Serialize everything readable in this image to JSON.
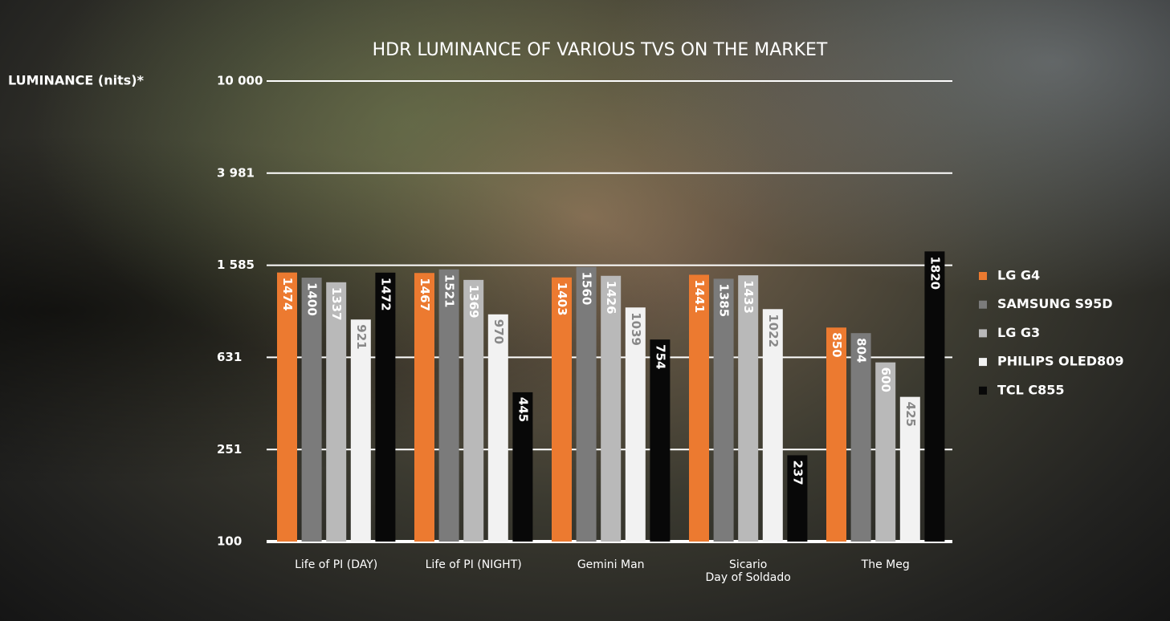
{
  "chart_data": {
    "type": "bar",
    "title": "HDR LUMINANCE OF VARIOUS TVS ON THE MARKET",
    "y_label": "LUMINANCE (nits)*",
    "categories": [
      "Life of PI (DAY)",
      "Life of PI (NIGHT)",
      "Gemini Man",
      "Sicario\nDay of Soldado",
      "The Meg"
    ],
    "series": [
      {
        "name": "LG G4",
        "color": "#ec7a30",
        "values": [
          1474,
          1467,
          1403,
          1441,
          850
        ]
      },
      {
        "name": "SAMSUNG S95D",
        "color": "#7b7b7b",
        "values": [
          1400,
          1521,
          1560,
          1385,
          804
        ]
      },
      {
        "name": "LG G3",
        "color": "#b9b9b9",
        "values": [
          1337,
          1369,
          1426,
          1433,
          600
        ]
      },
      {
        "name": "PHILIPS OLED809",
        "color": "#f2f2f2",
        "values": [
          921,
          970,
          1039,
          1022,
          425
        ]
      },
      {
        "name": "TCL C855",
        "color": "#080808",
        "values": [
          1472,
          445,
          754,
          237,
          1820
        ]
      }
    ],
    "log_scale": true,
    "ylim": [
      100,
      10000
    ],
    "yticks": [
      100,
      251,
      631,
      {
        "value": 1585,
        "label": "1 585"
      },
      {
        "value": 3981,
        "label": "3 981"
      },
      {
        "value": 10000,
        "label": "10 000"
      }
    ],
    "grid": true,
    "legend": "right"
  }
}
